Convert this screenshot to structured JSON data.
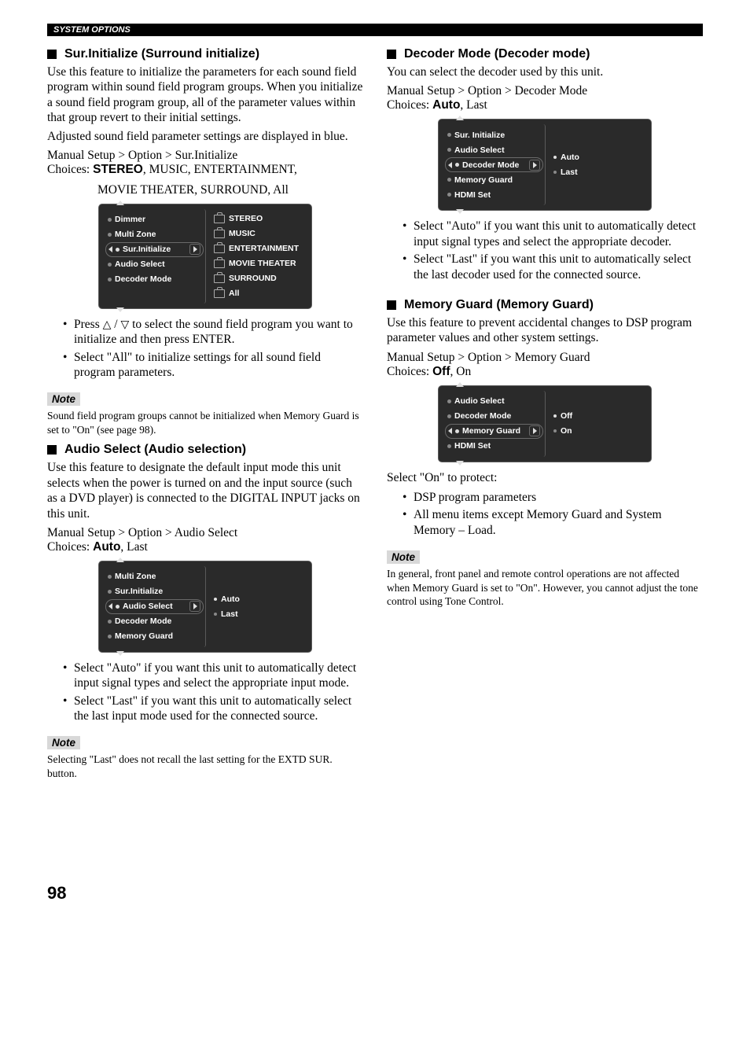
{
  "header": {
    "label": "SYSTEM OPTIONS"
  },
  "pageNumber": "98",
  "noteLabel": "Note",
  "left": {
    "surInit": {
      "heading": "Sur.Initialize (Surround initialize)",
      "body1": "Use this feature to initialize the parameters for each sound field program within sound field program groups. When you initialize a sound field program group, all of the parameter values within that group revert to their initial settings.",
      "body2": "Adjusted sound field parameter settings are displayed in blue.",
      "breadcrumb": "Manual Setup > Option > Sur.Initialize",
      "choicesPrefix": "Choices: ",
      "choicesBold": "STEREO",
      "choicesRest": ", MUSIC, ENTERTAINMENT,",
      "choicesLine2": "MOVIE THEATER, SURROUND, All",
      "menu": {
        "items": [
          "Dimmer",
          "Multi Zone",
          "Sur.Initialize",
          "Audio Select",
          "Decoder Mode"
        ],
        "selectedIndex": 2,
        "options": [
          "STEREO",
          "MUSIC",
          "ENTERTAINMENT",
          "MOVIE THEATER",
          "SURROUND",
          "All"
        ]
      },
      "bullet1_a": "Press ",
      "bullet1_b": " to select the sound field program you want to initialize and then press ENTER.",
      "bullet2": "Select \"All\" to initialize settings for all sound field program parameters.",
      "note": "Sound field program groups cannot be initialized when Memory Guard is set to \"On\" (see page 98)."
    },
    "audioSelect": {
      "heading": "Audio Select (Audio selection)",
      "body": "Use this feature to designate the default input mode this unit selects when the power is turned on and the input source (such as a DVD player) is connected to the DIGITAL INPUT jacks on this unit.",
      "breadcrumb": "Manual Setup > Option > Audio Select",
      "choicesPrefix": "Choices: ",
      "choicesBold": "Auto",
      "choicesRest": ", Last",
      "menu": {
        "items": [
          "Multi Zone",
          "Sur.Initialize",
          "Audio Select",
          "Decoder Mode",
          "Memory Guard"
        ],
        "selectedIndex": 2,
        "options": [
          "Auto",
          "Last"
        ],
        "selectedOption": 0
      },
      "bullet1": "Select \"Auto\" if you want this unit to automatically detect input signal types and select the appropriate input mode.",
      "bullet2": "Select \"Last\" if you want this unit to automatically select the last input mode used for the connected source.",
      "note": "Selecting \"Last\" does not recall the last setting for the EXTD SUR. button."
    }
  },
  "right": {
    "decoderMode": {
      "heading": "Decoder Mode (Decoder mode)",
      "body": "You can select the decoder used by this unit.",
      "breadcrumb": "Manual Setup > Option > Decoder Mode",
      "choicesPrefix": "Choices: ",
      "choicesBold": "Auto",
      "choicesRest": ", Last",
      "menu": {
        "items": [
          "Sur. Initialize",
          "Audio Select",
          "Decoder Mode",
          "Memory Guard",
          "HDMI Set"
        ],
        "selectedIndex": 2,
        "options": [
          "Auto",
          "Last"
        ],
        "selectedOption": 0
      },
      "bullet1": "Select \"Auto\" if you want this unit to automatically detect input signal types and select the appropriate decoder.",
      "bullet2": "Select \"Last\" if you want this unit to automatically select the last decoder used for the connected source."
    },
    "memoryGuard": {
      "heading": "Memory Guard (Memory Guard)",
      "body": "Use this feature to prevent accidental changes to DSP program parameter values and other system settings.",
      "breadcrumb": "Manual Setup > Option > Memory Guard",
      "choicesPrefix": "Choices: ",
      "choicesBold": "Off",
      "choicesRest": ", On",
      "menu": {
        "items": [
          "Audio Select",
          "Decoder Mode",
          "Memory Guard",
          "HDMI Set"
        ],
        "selectedIndex": 2,
        "options": [
          "Off",
          "On"
        ],
        "selectedOption": 0
      },
      "protectLabel": "Select \"On\" to protect:",
      "bullet1": "DSP program parameters",
      "bullet2": "All menu items except Memory Guard and System Memory – Load.",
      "note": "In general, front panel and remote control operations are not affected when Memory Guard is set to \"On\". However, you cannot adjust the tone control using Tone Control."
    }
  }
}
